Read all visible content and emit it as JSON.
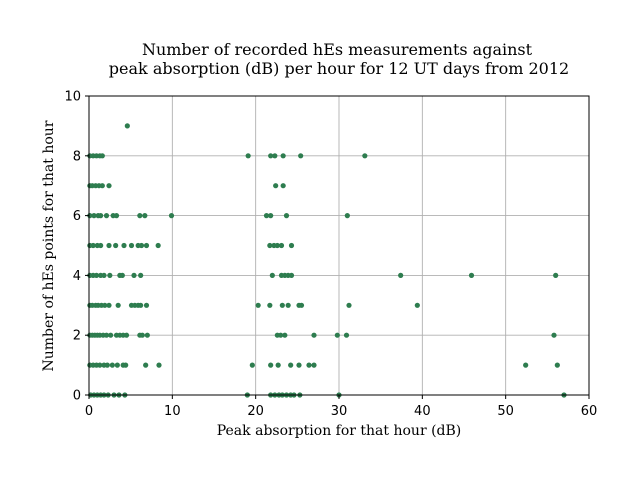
{
  "chart_data": {
    "type": "scatter",
    "title_line1": "Number of recorded hEs measurements against",
    "title_line2": "peak absorption (dB) per hour for 12 UT days from 2012",
    "xlabel": "Peak absorption for that hour (dB)",
    "ylabel": "Number of hEs points for that hour",
    "xlim": [
      0,
      60
    ],
    "ylim": [
      0,
      10
    ],
    "xticks": [
      "0",
      "10",
      "20",
      "30",
      "40",
      "50",
      "60"
    ],
    "yticks": [
      "0",
      "2",
      "4",
      "6",
      "8",
      "10"
    ],
    "grid": true,
    "marker_color": "#2e7d4f",
    "series": [
      {
        "points": [
          [
            0.2,
            0
          ],
          [
            0.6,
            0
          ],
          [
            1.0,
            0
          ],
          [
            1.4,
            0
          ],
          [
            1.8,
            0
          ],
          [
            2.3,
            0
          ],
          [
            3.0,
            0
          ],
          [
            3.6,
            0
          ],
          [
            4.3,
            0
          ],
          [
            19.0,
            0
          ],
          [
            21.8,
            0
          ],
          [
            22.3,
            0
          ],
          [
            22.8,
            0
          ],
          [
            23.2,
            0
          ],
          [
            23.7,
            0
          ],
          [
            24.2,
            0
          ],
          [
            24.6,
            0
          ],
          [
            25.3,
            0
          ],
          [
            30.0,
            0
          ],
          [
            57.0,
            0
          ],
          [
            0.1,
            1
          ],
          [
            0.5,
            1
          ],
          [
            0.9,
            1
          ],
          [
            1.3,
            1
          ],
          [
            1.8,
            1
          ],
          [
            2.2,
            1
          ],
          [
            2.8,
            1
          ],
          [
            3.4,
            1
          ],
          [
            4.1,
            1
          ],
          [
            4.4,
            1
          ],
          [
            6.8,
            1
          ],
          [
            8.4,
            1
          ],
          [
            19.6,
            1
          ],
          [
            21.8,
            1
          ],
          [
            22.7,
            1
          ],
          [
            24.2,
            1
          ],
          [
            25.2,
            1
          ],
          [
            26.4,
            1
          ],
          [
            27.0,
            1
          ],
          [
            52.4,
            1
          ],
          [
            56.2,
            1
          ],
          [
            0.1,
            2
          ],
          [
            0.4,
            2
          ],
          [
            0.7,
            2
          ],
          [
            1.0,
            2
          ],
          [
            1.3,
            2
          ],
          [
            1.7,
            2
          ],
          [
            2.1,
            2
          ],
          [
            2.6,
            2
          ],
          [
            3.3,
            2
          ],
          [
            3.7,
            2
          ],
          [
            4.1,
            2
          ],
          [
            4.5,
            2
          ],
          [
            6.1,
            2
          ],
          [
            6.4,
            2
          ],
          [
            7.0,
            2
          ],
          [
            22.6,
            2
          ],
          [
            23.0,
            2
          ],
          [
            23.5,
            2
          ],
          [
            27.0,
            2
          ],
          [
            29.8,
            2
          ],
          [
            30.9,
            2
          ],
          [
            55.8,
            2
          ],
          [
            0.1,
            3
          ],
          [
            0.4,
            3
          ],
          [
            0.8,
            3
          ],
          [
            1.1,
            3
          ],
          [
            1.5,
            3
          ],
          [
            1.9,
            3
          ],
          [
            2.4,
            3
          ],
          [
            3.5,
            3
          ],
          [
            5.1,
            3
          ],
          [
            5.5,
            3
          ],
          [
            5.9,
            3
          ],
          [
            6.2,
            3
          ],
          [
            6.9,
            3
          ],
          [
            20.3,
            3
          ],
          [
            21.7,
            3
          ],
          [
            23.2,
            3
          ],
          [
            23.9,
            3
          ],
          [
            25.2,
            3
          ],
          [
            25.5,
            3
          ],
          [
            31.2,
            3
          ],
          [
            39.4,
            3
          ],
          [
            0.1,
            4
          ],
          [
            0.5,
            4
          ],
          [
            0.9,
            4
          ],
          [
            1.4,
            4
          ],
          [
            1.8,
            4
          ],
          [
            2.5,
            4
          ],
          [
            3.7,
            4
          ],
          [
            4.0,
            4
          ],
          [
            5.4,
            4
          ],
          [
            6.2,
            4
          ],
          [
            22.0,
            4
          ],
          [
            23.1,
            4
          ],
          [
            23.5,
            4
          ],
          [
            23.9,
            4
          ],
          [
            24.3,
            4
          ],
          [
            37.4,
            4
          ],
          [
            45.9,
            4
          ],
          [
            56.0,
            4
          ],
          [
            0.1,
            5
          ],
          [
            0.5,
            5
          ],
          [
            1.0,
            5
          ],
          [
            1.4,
            5
          ],
          [
            2.4,
            5
          ],
          [
            3.2,
            5
          ],
          [
            4.2,
            5
          ],
          [
            5.1,
            5
          ],
          [
            5.9,
            5
          ],
          [
            6.3,
            5
          ],
          [
            6.9,
            5
          ],
          [
            8.3,
            5
          ],
          [
            21.7,
            5
          ],
          [
            22.2,
            5
          ],
          [
            22.6,
            5
          ],
          [
            23.1,
            5
          ],
          [
            24.3,
            5
          ],
          [
            0.1,
            6
          ],
          [
            0.6,
            6
          ],
          [
            1.1,
            6
          ],
          [
            1.4,
            6
          ],
          [
            2.1,
            6
          ],
          [
            2.9,
            6
          ],
          [
            3.3,
            6
          ],
          [
            6.1,
            6
          ],
          [
            6.7,
            6
          ],
          [
            9.9,
            6
          ],
          [
            21.3,
            6
          ],
          [
            21.8,
            6
          ],
          [
            23.7,
            6
          ],
          [
            31.0,
            6
          ],
          [
            0.1,
            7
          ],
          [
            0.4,
            7
          ],
          [
            0.8,
            7
          ],
          [
            1.2,
            7
          ],
          [
            1.6,
            7
          ],
          [
            2.4,
            7
          ],
          [
            22.4,
            7
          ],
          [
            23.3,
            7
          ],
          [
            0.1,
            8
          ],
          [
            0.5,
            8
          ],
          [
            0.9,
            8
          ],
          [
            1.3,
            8
          ],
          [
            1.6,
            8
          ],
          [
            19.1,
            8
          ],
          [
            21.8,
            8
          ],
          [
            22.3,
            8
          ],
          [
            23.3,
            8
          ],
          [
            25.4,
            8
          ],
          [
            33.1,
            8
          ],
          [
            4.6,
            9
          ]
        ]
      }
    ]
  }
}
